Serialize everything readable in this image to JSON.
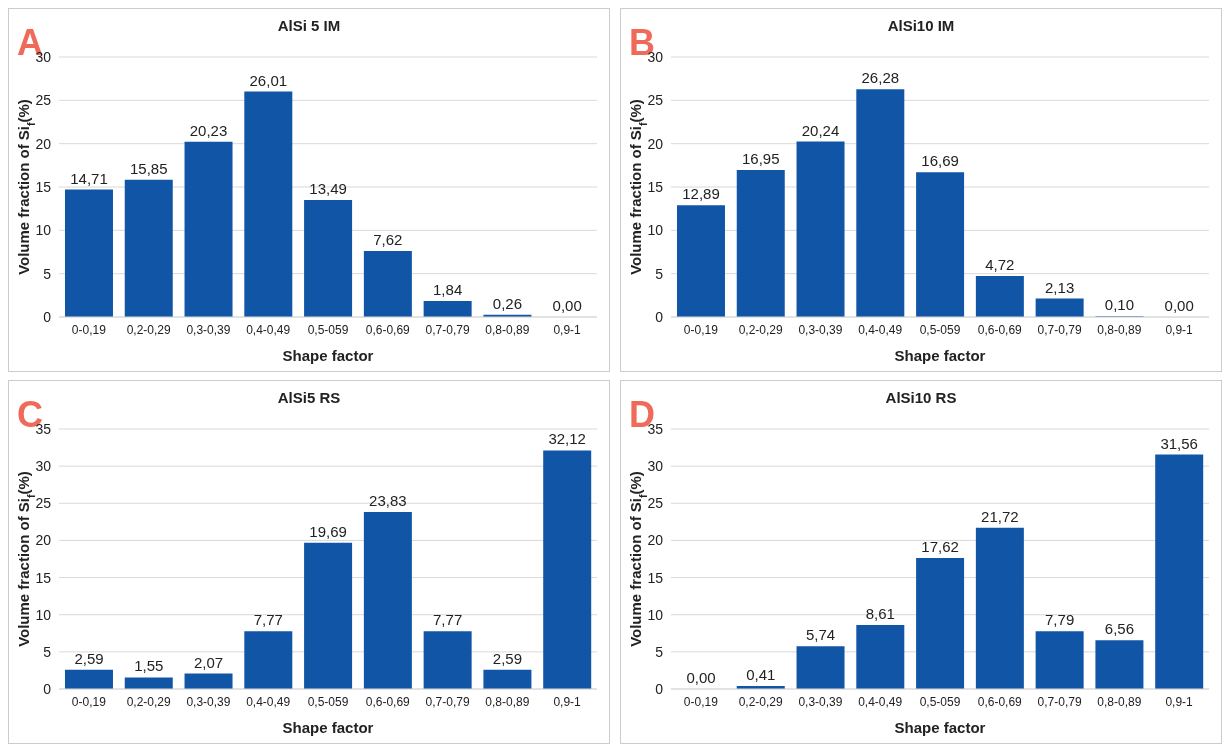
{
  "chart_data": [
    {
      "type": "bar",
      "title": "AlSi 5 IM",
      "xlabel": "Shape factor",
      "ylabel": "Volume fraction of Si$_{f}$(%)",
      "annotations": [
        "A"
      ],
      "categories": [
        "0-0,19",
        "0,2-0,29",
        "0,3-0,39",
        "0,4-0,49",
        "0,5-059",
        "0,6-0,69",
        "0,7-0,79",
        "0,8-0,89",
        "0,9-1"
      ],
      "values": [
        14.71,
        15.85,
        20.23,
        26.01,
        13.49,
        7.62,
        1.84,
        0.26,
        0.0
      ],
      "value_labels": [
        "14,71",
        "15,85",
        "20,23",
        "26,01",
        "13,49",
        "7,62",
        "1,84",
        "0,26",
        "0,00"
      ],
      "color": "#1155a6",
      "ylim": [
        0,
        30
      ],
      "yticks": [
        0,
        5,
        10,
        15,
        20,
        25,
        30
      ],
      "grid": "y"
    },
    {
      "type": "bar",
      "title": "AlSi10 IM",
      "xlabel": "Shape factor",
      "ylabel": "Volume fraction of Si$_{f}$(%)",
      "annotations": [
        "B"
      ],
      "categories": [
        "0-0,19",
        "0,2-0,29",
        "0,3-0,39",
        "0,4-0,49",
        "0,5-059",
        "0,6-0,69",
        "0,7-0,79",
        "0,8-0,89",
        "0,9-1"
      ],
      "values": [
        12.89,
        16.95,
        20.24,
        26.28,
        16.69,
        4.72,
        2.13,
        0.1,
        0.0
      ],
      "value_labels": [
        "12,89",
        "16,95",
        "20,24",
        "26,28",
        "16,69",
        "4,72",
        "2,13",
        "0,10",
        "0,00"
      ],
      "color": "#1155a6",
      "ylim": [
        0,
        30
      ],
      "yticks": [
        0,
        5,
        10,
        15,
        20,
        25,
        30
      ],
      "grid": "y"
    },
    {
      "type": "bar",
      "title": "AlSi5 RS",
      "xlabel": "Shape factor",
      "ylabel": "Volume fraction of Si$_{f}$(%)",
      "annotations": [
        "C"
      ],
      "categories": [
        "0-0,19",
        "0,2-0,29",
        "0,3-0,39",
        "0,4-0,49",
        "0,5-059",
        "0,6-0,69",
        "0,7-0,79",
        "0,8-0,89",
        "0,9-1"
      ],
      "values": [
        2.59,
        1.55,
        2.07,
        7.77,
        19.69,
        23.83,
        7.77,
        2.59,
        32.12
      ],
      "value_labels": [
        "2,59",
        "1,55",
        "2,07",
        "7,77",
        "19,69",
        "23,83",
        "7,77",
        "2,59",
        "32,12"
      ],
      "color": "#1155a6",
      "ylim": [
        0,
        35
      ],
      "yticks": [
        0,
        5,
        10,
        15,
        20,
        25,
        30,
        35
      ],
      "grid": "y"
    },
    {
      "type": "bar",
      "title": "AlSi10 RS",
      "xlabel": "Shape factor",
      "ylabel": "Volume fraction of Si$_{f}$(%)",
      "annotations": [
        "D"
      ],
      "categories": [
        "0-0,19",
        "0,2-0,29",
        "0,3-0,39",
        "0,4-0,49",
        "0,5-059",
        "0,6-0,69",
        "0,7-0,79",
        "0,8-0,89",
        "0,9-1"
      ],
      "values": [
        0.0,
        0.41,
        5.74,
        8.61,
        17.62,
        21.72,
        7.79,
        6.56,
        31.56
      ],
      "value_labels": [
        "0,00",
        "0,41",
        "5,74",
        "8,61",
        "17,62",
        "21,72",
        "7,79",
        "6,56",
        "31,56"
      ],
      "color": "#1155a6",
      "ylim": [
        0,
        35
      ],
      "yticks": [
        0,
        5,
        10,
        15,
        20,
        25,
        30,
        35
      ],
      "grid": "y"
    }
  ]
}
